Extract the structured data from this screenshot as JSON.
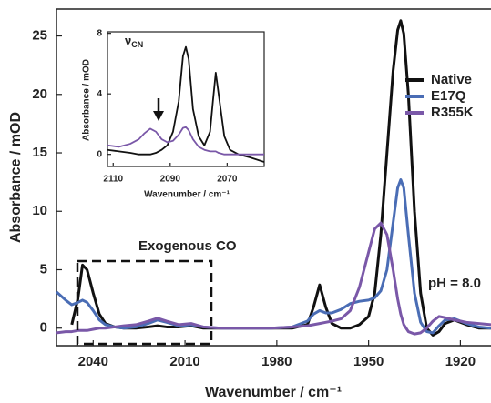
{
  "chart_data": [
    {
      "type": "line",
      "x_label": "Wavenumber / cm⁻¹",
      "y_label": "Absorbance / mOD",
      "x": [
        2052,
        2049,
        2047,
        2045,
        2043.5,
        2042,
        2040,
        2038,
        2036,
        2033,
        2030,
        2026,
        2022,
        2019,
        2016,
        2012,
        2008,
        2004,
        1998,
        1990,
        1982,
        1975,
        1970,
        1968,
        1966,
        1964,
        1962,
        1959,
        1956,
        1953,
        1950,
        1948,
        1946,
        1944,
        1942,
        1940.5,
        1939.5,
        1938.5,
        1937,
        1935,
        1933,
        1931,
        1929,
        1927,
        1925,
        1922,
        1918,
        1914,
        1910
      ],
      "series": [
        {
          "name": "Native",
          "color": "#111111",
          "values": [
            null,
            null,
            0.3,
            2.5,
            5.4,
            5.0,
            3.0,
            1.2,
            0.4,
            0.1,
            0,
            0,
            0.1,
            0.2,
            0.1,
            0.1,
            0.2,
            0,
            0,
            0,
            0,
            0,
            0.3,
            1.8,
            3.7,
            1.8,
            0.4,
            0,
            0,
            0.3,
            1.0,
            3,
            8,
            15,
            22,
            25.5,
            26.3,
            25.2,
            20,
            10,
            3,
            0,
            -0.6,
            -0.3,
            0.4,
            0.7,
            0.3,
            0,
            0
          ]
        },
        {
          "name": "E17Q",
          "color": "#4a6db5",
          "values": [
            3.1,
            2.4,
            2.0,
            2.2,
            2.4,
            2.2,
            1.5,
            0.7,
            0.3,
            0.1,
            0,
            0.1,
            0.4,
            0.7,
            0.5,
            0.2,
            0.3,
            0.1,
            0,
            0,
            0,
            0.1,
            0.6,
            1.2,
            1.5,
            1.3,
            1.3,
            1.6,
            2.1,
            2.3,
            2.4,
            2.6,
            3.2,
            5,
            9,
            12.0,
            12.7,
            12.0,
            8,
            3,
            0.5,
            -0.3,
            -0.4,
            0.2,
            0.7,
            0.8,
            0.4,
            0.1,
            0
          ]
        },
        {
          "name": "R355K",
          "color": "#7a58a8",
          "values": [
            -0.4,
            -0.3,
            -0.3,
            -0.2,
            -0.2,
            -0.2,
            -0.1,
            0,
            0,
            0.1,
            0.2,
            0.3,
            0.6,
            0.85,
            0.6,
            0.3,
            0.4,
            0.1,
            0,
            0,
            0,
            0.1,
            0.2,
            0.3,
            0.4,
            0.5,
            0.6,
            0.8,
            1.5,
            3.5,
            6.5,
            8.5,
            9.0,
            8.0,
            5,
            2.5,
            1.2,
            0.3,
            -0.3,
            -0.5,
            -0.4,
            0,
            0.6,
            1.0,
            0.9,
            0.7,
            0.5,
            0.4,
            0.3
          ]
        }
      ],
      "xlim": [
        2052,
        1910
      ],
      "xticks": [
        2040,
        2010,
        1980,
        1950,
        1920
      ],
      "ylim": [
        -1.5,
        27.3
      ],
      "yticks": [
        0,
        5,
        10,
        15,
        20,
        25
      ],
      "legend": "upper right",
      "annotations": [
        "Exogenous CO",
        "pH = 8.0"
      ]
    },
    {
      "type": "line",
      "label": "ν",
      "label_subscript": "CN",
      "x_label": "Wavenumber / cm⁻¹",
      "y_label": "Absorbance / mOD",
      "x": [
        2112,
        2108,
        2104,
        2101,
        2099,
        2097,
        2095,
        2093,
        2091,
        2089,
        2087,
        2085.5,
        2084.5,
        2083.5,
        2082,
        2080,
        2078,
        2076,
        2075,
        2074,
        2073,
        2071,
        2069,
        2066,
        2062,
        2057
      ],
      "series": [
        {
          "name": "Native",
          "color": "#111111",
          "values": [
            0.3,
            0.2,
            0.1,
            0,
            0,
            0,
            0.1,
            0.3,
            0.6,
            1.5,
            3.5,
            6.5,
            7.1,
            6.3,
            3.0,
            1.2,
            0.6,
            1.5,
            3.5,
            5.4,
            4.0,
            1.2,
            0.3,
            0,
            -0.2,
            -0.5
          ]
        },
        {
          "name": "R355K",
          "color": "#7a58a8",
          "values": [
            0.6,
            0.5,
            0.7,
            1.0,
            1.4,
            1.7,
            1.5,
            1.0,
            0.8,
            0.9,
            1.3,
            1.75,
            1.8,
            1.6,
            1.0,
            0.5,
            0.3,
            0.2,
            0.2,
            0.2,
            0.1,
            0,
            0,
            0,
            0,
            0
          ]
        }
      ],
      "xlim": [
        2112,
        2057
      ],
      "xticks": [
        2110,
        2090,
        2070
      ],
      "ylim": [
        -0.8,
        8.1
      ],
      "yticks": [
        0,
        4,
        8
      ]
    }
  ]
}
